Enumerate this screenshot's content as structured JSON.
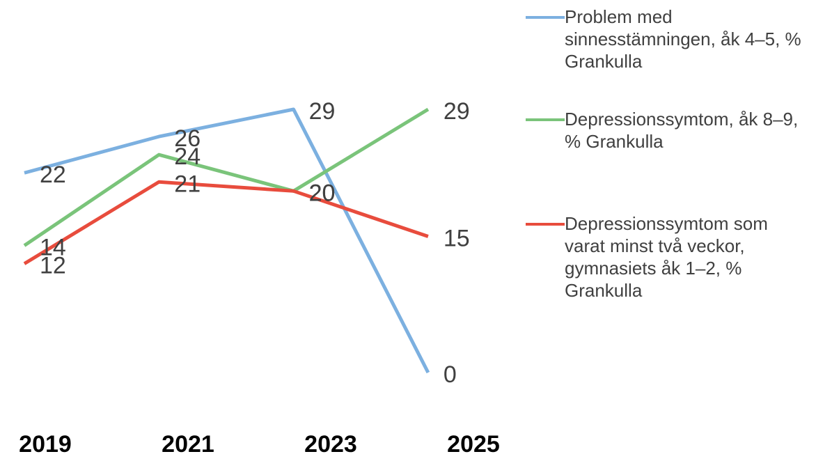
{
  "chart_data": {
    "type": "line",
    "categories": [
      "2019",
      "2021",
      "2023",
      "2025"
    ],
    "series": [
      {
        "name": "Problem med sinnesstämningen, åk 4–5, % Grankulla",
        "color": "#7cb0e0",
        "values": [
          22,
          26,
          29,
          0
        ]
      },
      {
        "name": "Depressionssymtom, åk 8–9, % Grankulla",
        "color": "#7ac47a",
        "values": [
          14,
          24,
          20,
          29
        ]
      },
      {
        "name": "Depressionssymtom som varat minst två veckor, gymnasiets åk 1–2, % Grankulla",
        "color": "#e84c3d",
        "values": [
          12,
          21,
          20,
          15
        ]
      }
    ],
    "legend": "right"
  }
}
